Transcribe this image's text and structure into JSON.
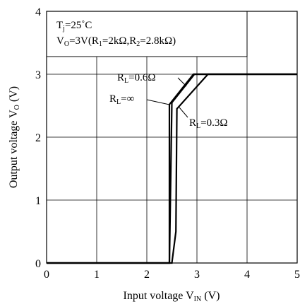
{
  "chart_data": {
    "type": "line",
    "title": "",
    "xlabel": {
      "text": "Input voltage V",
      "sub": "IN",
      "unit": " (V)"
    },
    "ylabel": {
      "text": "Output voltage V",
      "sub": "O",
      "unit": " (V)"
    },
    "xlim": [
      0,
      5
    ],
    "ylim": [
      0,
      4
    ],
    "x_ticks": [
      "0",
      "1",
      "2",
      "3",
      "4",
      "5"
    ],
    "y_ticks": [
      "0",
      "1",
      "2",
      "3",
      "4"
    ],
    "grid": true,
    "conditions": {
      "line1": {
        "a": "T",
        "a_sub": "j",
        "b": "=25˚C"
      },
      "line2": {
        "a": "V",
        "a_sub": "O",
        "b": "=3V(R",
        "c_sub": "1",
        "d": "=2kΩ,R",
        "e_sub": "2",
        "f": "=2.8kΩ)"
      }
    },
    "series": [
      {
        "label_main": "R",
        "label_sub": "L",
        "label_val": "=0.6Ω",
        "points": [
          [
            0,
            0
          ],
          [
            2.45,
            0
          ],
          [
            2.5,
            2.55
          ],
          [
            2.95,
            3.0
          ],
          [
            5,
            3.0
          ]
        ]
      },
      {
        "label_main": "R",
        "label_sub": "L",
        "label_val": "=∞",
        "points": [
          [
            0,
            0
          ],
          [
            2.45,
            0
          ],
          [
            2.45,
            2.52
          ],
          [
            2.93,
            3.0
          ],
          [
            5,
            3.0
          ]
        ]
      },
      {
        "label_main": "R",
        "label_sub": "L",
        "label_val": "=0.3Ω",
        "points": [
          [
            0,
            0
          ],
          [
            2.5,
            0
          ],
          [
            2.58,
            0.5
          ],
          [
            2.6,
            2.45
          ],
          [
            3.22,
            3.0
          ],
          [
            5,
            3.0
          ]
        ]
      }
    ],
    "line_color": "#000000"
  }
}
